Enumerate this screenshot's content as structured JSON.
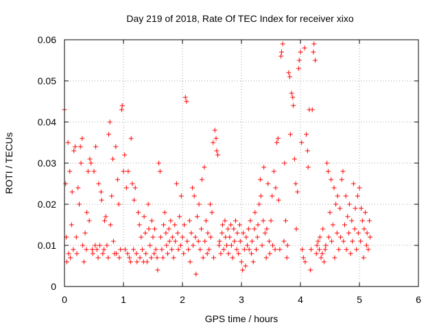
{
  "chart_data": {
    "type": "scatter",
    "title": "Day 219 of 2018, Rate Of TEC Index for receiver xixo",
    "xlabel": "GPS time / hours",
    "ylabel": "ROTI / TECUs",
    "xlim": [
      0,
      6
    ],
    "ylim": [
      0,
      0.06
    ],
    "x_ticks": [
      "0",
      "1",
      "2",
      "3",
      "4",
      "5",
      "6"
    ],
    "y_ticks": [
      "0",
      "0.01",
      "0.02",
      "0.03",
      "0.04",
      "0.05",
      "0.06"
    ],
    "grid": true,
    "marker": "+",
    "color": "#ff0000",
    "series": [
      {
        "name": "ROTI",
        "points": [
          [
            0.0,
            0.043
          ],
          [
            0.02,
            0.025
          ],
          [
            0.03,
            0.012
          ],
          [
            0.04,
            0.006
          ],
          [
            0.06,
            0.035
          ],
          [
            0.07,
            0.008
          ],
          [
            0.09,
            0.028
          ],
          [
            0.1,
            0.007
          ],
          [
            0.12,
            0.015
          ],
          [
            0.13,
            0.023
          ],
          [
            0.15,
            0.009
          ],
          [
            0.16,
            0.033
          ],
          [
            0.18,
            0.034
          ],
          [
            0.2,
            0.012
          ],
          [
            0.21,
            0.008
          ],
          [
            0.23,
            0.024
          ],
          [
            0.25,
            0.02
          ],
          [
            0.27,
            0.034
          ],
          [
            0.28,
            0.03
          ],
          [
            0.3,
            0.036
          ],
          [
            0.31,
            0.01
          ],
          [
            0.33,
            0.006
          ],
          [
            0.35,
            0.013
          ],
          [
            0.37,
            0.009
          ],
          [
            0.38,
            0.018
          ],
          [
            0.4,
            0.028
          ],
          [
            0.42,
            0.016
          ],
          [
            0.43,
            0.031
          ],
          [
            0.45,
            0.03
          ],
          [
            0.47,
            0.009
          ],
          [
            0.48,
            0.008
          ],
          [
            0.5,
            0.028
          ],
          [
            0.52,
            0.01
          ],
          [
            0.53,
            0.034
          ],
          [
            0.55,
            0.009
          ],
          [
            0.57,
            0.007
          ],
          [
            0.58,
            0.025
          ],
          [
            0.6,
            0.01
          ],
          [
            0.62,
            0.023
          ],
          [
            0.63,
            0.021
          ],
          [
            0.65,
            0.008
          ],
          [
            0.67,
            0.009
          ],
          [
            0.68,
            0.016
          ],
          [
            0.7,
            0.017
          ],
          [
            0.72,
            0.01
          ],
          [
            0.74,
            0.007
          ],
          [
            0.75,
            0.037
          ],
          [
            0.77,
            0.04
          ],
          [
            0.78,
            0.015
          ],
          [
            0.8,
            0.022
          ],
          [
            0.82,
            0.031
          ],
          [
            0.83,
            0.011
          ],
          [
            0.85,
            0.008
          ],
          [
            0.87,
            0.034
          ],
          [
            0.88,
            0.008
          ],
          [
            0.9,
            0.026
          ],
          [
            0.92,
            0.02
          ],
          [
            0.93,
            0.007
          ],
          [
            0.95,
            0.009
          ],
          [
            0.97,
            0.043
          ],
          [
            0.98,
            0.044
          ],
          [
            1.0,
            0.028
          ],
          [
            1.02,
            0.032
          ],
          [
            1.03,
            0.009
          ],
          [
            1.05,
            0.024
          ],
          [
            1.07,
            0.008
          ],
          [
            1.08,
            0.028
          ],
          [
            1.1,
            0.007
          ],
          [
            1.12,
            0.006
          ],
          [
            1.13,
            0.036
          ],
          [
            1.15,
            0.025
          ],
          [
            1.17,
            0.009
          ],
          [
            1.18,
            0.021
          ],
          [
            1.2,
            0.024
          ],
          [
            1.22,
            0.008
          ],
          [
            1.23,
            0.006
          ],
          [
            1.25,
            0.018
          ],
          [
            1.27,
            0.015
          ],
          [
            1.28,
            0.007
          ],
          [
            1.3,
            0.012
          ],
          [
            1.32,
            0.009
          ],
          [
            1.34,
            0.006
          ],
          [
            1.35,
            0.017
          ],
          [
            1.37,
            0.013
          ],
          [
            1.38,
            0.008
          ],
          [
            1.4,
            0.006
          ],
          [
            1.42,
            0.02
          ],
          [
            1.43,
            0.014
          ],
          [
            1.45,
            0.01
          ],
          [
            1.47,
            0.007
          ],
          [
            1.48,
            0.016
          ],
          [
            1.5,
            0.012
          ],
          [
            1.52,
            0.008
          ],
          [
            1.53,
            0.014
          ],
          [
            1.55,
            0.009
          ],
          [
            1.57,
            0.007
          ],
          [
            1.58,
            0.004
          ],
          [
            1.6,
            0.03
          ],
          [
            1.62,
            0.028
          ],
          [
            1.63,
            0.012
          ],
          [
            1.65,
            0.009
          ],
          [
            1.67,
            0.007
          ],
          [
            1.68,
            0.015
          ],
          [
            1.7,
            0.018
          ],
          [
            1.72,
            0.013
          ],
          [
            1.73,
            0.01
          ],
          [
            1.75,
            0.008
          ],
          [
            1.77,
            0.014
          ],
          [
            1.78,
            0.011
          ],
          [
            1.8,
            0.016
          ],
          [
            1.82,
            0.009
          ],
          [
            1.83,
            0.012
          ],
          [
            1.85,
            0.007
          ],
          [
            1.87,
            0.015
          ],
          [
            1.88,
            0.011
          ],
          [
            1.9,
            0.025
          ],
          [
            1.92,
            0.013
          ],
          [
            1.93,
            0.009
          ],
          [
            1.95,
            0.017
          ],
          [
            1.97,
            0.01
          ],
          [
            1.98,
            0.022
          ],
          [
            2.0,
            0.012
          ],
          [
            2.02,
            0.008
          ],
          [
            2.03,
            0.015
          ],
          [
            2.05,
            0.046
          ],
          [
            2.07,
            0.045
          ],
          [
            2.08,
            0.011
          ],
          [
            2.1,
            0.009
          ],
          [
            2.12,
            0.016
          ],
          [
            2.13,
            0.006
          ],
          [
            2.15,
            0.013
          ],
          [
            2.17,
            0.024
          ],
          [
            2.18,
            0.01
          ],
          [
            2.2,
            0.022
          ],
          [
            2.22,
            0.012
          ],
          [
            2.23,
            0.003
          ],
          [
            2.25,
            0.017
          ],
          [
            2.27,
            0.011
          ],
          [
            2.28,
            0.02
          ],
          [
            2.3,
            0.009
          ],
          [
            2.32,
            0.014
          ],
          [
            2.33,
            0.026
          ],
          [
            2.35,
            0.007
          ],
          [
            2.37,
            0.029
          ],
          [
            2.38,
            0.011
          ],
          [
            2.4,
            0.016
          ],
          [
            2.42,
            0.008
          ],
          [
            2.43,
            0.013
          ],
          [
            2.45,
            0.009
          ],
          [
            2.47,
            0.02
          ],
          [
            2.48,
            0.012
          ],
          [
            2.5,
            0.018
          ],
          [
            2.52,
            0.035
          ],
          [
            2.53,
            0.007
          ],
          [
            2.55,
            0.038
          ],
          [
            2.57,
            0.036
          ],
          [
            2.58,
            0.033
          ],
          [
            2.6,
            0.032
          ],
          [
            2.62,
            0.01
          ],
          [
            2.63,
            0.011
          ],
          [
            2.65,
            0.008
          ],
          [
            2.67,
            0.013
          ],
          [
            2.68,
            0.015
          ],
          [
            2.7,
            0.009
          ],
          [
            2.72,
            0.016
          ],
          [
            2.73,
            0.012
          ],
          [
            2.75,
            0.01
          ],
          [
            2.77,
            0.014
          ],
          [
            2.78,
            0.008
          ],
          [
            2.8,
            0.012
          ],
          [
            2.82,
            0.015
          ],
          [
            2.83,
            0.01
          ],
          [
            2.85,
            0.007
          ],
          [
            2.87,
            0.014
          ],
          [
            2.88,
            0.011
          ],
          [
            2.9,
            0.016
          ],
          [
            2.92,
            0.009
          ],
          [
            2.93,
            0.013
          ],
          [
            2.95,
            0.008
          ],
          [
            2.97,
            0.015
          ],
          [
            2.98,
            0.011
          ],
          [
            3.0,
            0.006
          ],
          [
            3.02,
            0.004
          ],
          [
            3.03,
            0.013
          ],
          [
            3.05,
            0.009
          ],
          [
            3.07,
            0.005
          ],
          [
            3.08,
            0.012
          ],
          [
            3.1,
            0.01
          ],
          [
            3.12,
            0.014
          ],
          [
            3.13,
            0.009
          ],
          [
            3.15,
            0.016
          ],
          [
            3.17,
            0.008
          ],
          [
            3.18,
            0.011
          ],
          [
            3.2,
            0.006
          ],
          [
            3.22,
            0.014
          ],
          [
            3.23,
            0.018
          ],
          [
            3.25,
            0.009
          ],
          [
            3.27,
            0.012
          ],
          [
            3.28,
            0.015
          ],
          [
            3.3,
            0.02
          ],
          [
            3.32,
            0.026
          ],
          [
            3.33,
            0.022
          ],
          [
            3.35,
            0.01
          ],
          [
            3.37,
            0.016
          ],
          [
            3.38,
            0.029
          ],
          [
            3.4,
            0.013
          ],
          [
            3.42,
            0.007
          ],
          [
            3.43,
            0.014
          ],
          [
            3.45,
            0.025
          ],
          [
            3.47,
            0.011
          ],
          [
            3.48,
            0.008
          ],
          [
            3.5,
            0.016
          ],
          [
            3.52,
            0.022
          ],
          [
            3.53,
            0.01
          ],
          [
            3.55,
            0.028
          ],
          [
            3.57,
            0.009
          ],
          [
            3.58,
            0.024
          ],
          [
            3.6,
            0.035
          ],
          [
            3.62,
            0.036
          ],
          [
            3.63,
            0.021
          ],
          [
            3.65,
            0.009
          ],
          [
            3.67,
            0.056
          ],
          [
            3.68,
            0.057
          ],
          [
            3.7,
            0.059
          ],
          [
            3.72,
            0.011
          ],
          [
            3.73,
            0.03
          ],
          [
            3.75,
            0.016
          ],
          [
            3.77,
            0.007
          ],
          [
            3.78,
            0.01
          ],
          [
            3.8,
            0.052
          ],
          [
            3.82,
            0.051
          ],
          [
            3.83,
            0.037
          ],
          [
            3.85,
            0.047
          ],
          [
            3.87,
            0.046
          ],
          [
            3.88,
            0.044
          ],
          [
            3.9,
            0.031
          ],
          [
            3.92,
            0.025
          ],
          [
            3.93,
            0.014
          ],
          [
            3.95,
            0.023
          ],
          [
            3.97,
            0.053
          ],
          [
            3.98,
            0.055
          ],
          [
            4.0,
            0.057
          ],
          [
            4.02,
            0.035
          ],
          [
            4.03,
            0.009
          ],
          [
            4.05,
            0.007
          ],
          [
            4.07,
            0.058
          ],
          [
            4.08,
            0.006
          ],
          [
            4.1,
            0.037
          ],
          [
            4.12,
            0.033
          ],
          [
            4.13,
            0.029
          ],
          [
            4.15,
            0.043
          ],
          [
            4.17,
            0.004
          ],
          [
            4.18,
            0.009
          ],
          [
            4.2,
            0.043
          ],
          [
            4.22,
            0.057
          ],
          [
            4.23,
            0.059
          ],
          [
            4.25,
            0.055
          ],
          [
            4.27,
            0.008
          ],
          [
            4.28,
            0.01
          ],
          [
            4.3,
            0.011
          ],
          [
            4.32,
            0.009
          ],
          [
            4.33,
            0.012
          ],
          [
            4.35,
            0.007
          ],
          [
            4.37,
            0.008
          ],
          [
            4.38,
            0.014
          ],
          [
            4.4,
            0.006
          ],
          [
            4.42,
            0.009
          ],
          [
            4.43,
            0.01
          ],
          [
            4.45,
            0.03
          ],
          [
            4.47,
            0.028
          ],
          [
            4.48,
            0.012
          ],
          [
            4.5,
            0.018
          ],
          [
            4.52,
            0.026
          ],
          [
            4.53,
            0.011
          ],
          [
            4.55,
            0.015
          ],
          [
            4.57,
            0.024
          ],
          [
            4.58,
            0.007
          ],
          [
            4.6,
            0.02
          ],
          [
            4.62,
            0.013
          ],
          [
            4.63,
            0.022
          ],
          [
            4.65,
            0.009
          ],
          [
            4.67,
            0.019
          ],
          [
            4.68,
            0.012
          ],
          [
            4.7,
            0.026
          ],
          [
            4.72,
            0.028
          ],
          [
            4.73,
            0.011
          ],
          [
            4.75,
            0.015
          ],
          [
            4.77,
            0.022
          ],
          [
            4.78,
            0.009
          ],
          [
            4.8,
            0.017
          ],
          [
            4.82,
            0.013
          ],
          [
            4.83,
            0.02
          ],
          [
            4.85,
            0.008
          ],
          [
            4.87,
            0.016
          ],
          [
            4.88,
            0.011
          ],
          [
            4.9,
            0.025
          ],
          [
            4.92,
            0.014
          ],
          [
            4.93,
            0.019
          ],
          [
            4.95,
            0.009
          ],
          [
            4.97,
            0.022
          ],
          [
            4.98,
            0.013
          ],
          [
            5.0,
            0.024
          ],
          [
            5.02,
            0.011
          ],
          [
            5.03,
            0.019
          ],
          [
            5.05,
            0.016
          ],
          [
            5.07,
            0.007
          ],
          [
            5.08,
            0.014
          ],
          [
            5.1,
            0.018
          ],
          [
            5.12,
            0.01
          ],
          [
            5.13,
            0.013
          ],
          [
            5.15,
            0.009
          ],
          [
            5.17,
            0.016
          ],
          [
            5.18,
            0.012
          ]
        ]
      }
    ]
  }
}
